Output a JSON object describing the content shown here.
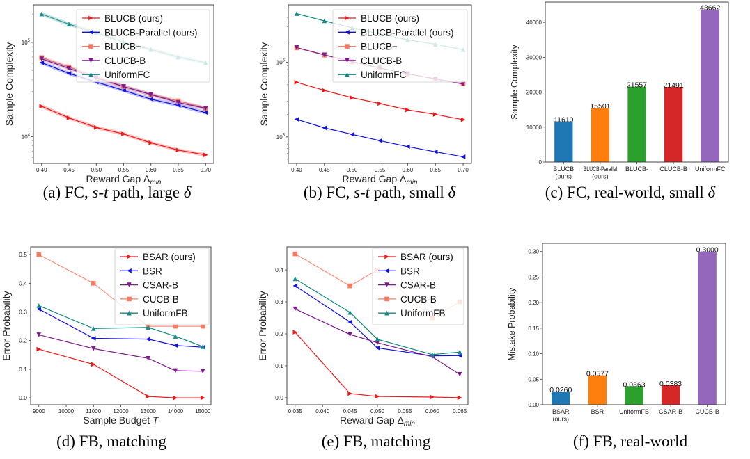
{
  "colors": {
    "red": "#f01818",
    "blue": "#1010e0",
    "salmon": "#fa7b62",
    "purple": "#7d1a8c",
    "teal": "#138a85",
    "bars": [
      "#1f77b4",
      "#ff7f0e",
      "#2ca02c",
      "#d62728",
      "#9467bd"
    ]
  },
  "chart_data": [
    {
      "id": "a",
      "type": "line",
      "yscale": "log",
      "xlabel": "Reward Gap Δ",
      "xlabel_sub": "min",
      "ylabel": "Sample Complexity",
      "x": [
        0.4,
        0.45,
        0.5,
        0.55,
        0.6,
        0.65,
        0.7
      ],
      "xticks": [
        "0.40",
        "0.45",
        "0.50",
        "0.55",
        "0.60",
        "0.65",
        "0.70"
      ],
      "xlim": [
        0.385,
        0.715
      ],
      "ylim": [
        5200,
        250000
      ],
      "yticks": [
        {
          "v": 10000,
          "base": "10",
          "exp": "4"
        },
        {
          "v": 100000,
          "base": "10",
          "exp": "5"
        }
      ],
      "shaded": true,
      "legend": "top-right",
      "series": [
        {
          "name": "BLUCB (ours)",
          "color": "red",
          "marker": "tri-right",
          "values": [
            21000,
            15800,
            12500,
            10700,
            8600,
            7200,
            6400
          ]
        },
        {
          "name": "BLUCB-Parallel (ours)",
          "color": "blue",
          "marker": "tri-left",
          "values": [
            61000,
            47000,
            38000,
            31000,
            25000,
            21500,
            18000
          ]
        },
        {
          "name": "BLUCB−",
          "color": "salmon",
          "marker": "square",
          "values": [
            69000,
            55000,
            43000,
            34000,
            28000,
            24000,
            20000
          ]
        },
        {
          "name": "CLUCB-B",
          "color": "purple",
          "marker": "tri-down",
          "values": [
            67000,
            53000,
            42000,
            34000,
            28000,
            23000,
            20000
          ]
        },
        {
          "name": "UniformFC",
          "color": "teal",
          "marker": "tri-up",
          "values": [
            200000,
            156000,
            127000,
            100000,
            84000,
            70000,
            61000
          ]
        }
      ]
    },
    {
      "id": "b",
      "type": "line",
      "yscale": "log",
      "xlabel": "Reward Gap Δ",
      "xlabel_sub": "min",
      "ylabel": "Sample Complexity",
      "x": [
        0.4,
        0.45,
        0.5,
        0.55,
        0.6,
        0.65,
        0.7
      ],
      "xticks": [
        "0.40",
        "0.45",
        "0.50",
        "0.55",
        "0.60",
        "0.65",
        "0.70"
      ],
      "xlim": [
        0.385,
        0.715
      ],
      "ylim": [
        44000,
        5900000
      ],
      "yticks": [
        {
          "v": 100000,
          "base": "10",
          "exp": "5"
        },
        {
          "v": 1000000,
          "base": "10",
          "exp": "6"
        }
      ],
      "shaded": false,
      "legend": "top-right",
      "series": [
        {
          "name": "BLUCB (ours)",
          "color": "red",
          "marker": "tri-right",
          "values": [
            540000,
            420000,
            335000,
            280000,
            230000,
            200000,
            170000
          ]
        },
        {
          "name": "BLUCB-Parallel (ours)",
          "color": "blue",
          "marker": "tri-left",
          "values": [
            172000,
            132000,
            108000,
            89000,
            74000,
            63000,
            54000
          ]
        },
        {
          "name": "BLUCB−",
          "color": "salmon",
          "marker": "square",
          "values": [
            1560000,
            1250000,
            1010000,
            840000,
            700000,
            600000,
            520000
          ]
        },
        {
          "name": "CLUCB-B",
          "color": "purple",
          "marker": "tri-down",
          "values": [
            1580000,
            1260000,
            1020000,
            840000,
            700000,
            600000,
            510000
          ]
        },
        {
          "name": "UniformFC",
          "color": "teal",
          "marker": "tri-up",
          "values": [
            4500000,
            3600000,
            2900000,
            2400000,
            2000000,
            1750000,
            1480000
          ]
        }
      ]
    },
    {
      "id": "c",
      "type": "bar",
      "ylabel": "Sample Complexity",
      "ylim": [
        0,
        45800
      ],
      "yticks": [
        0,
        10000,
        20000,
        30000,
        40000
      ],
      "categories": [
        [
          "BLUCB",
          "(ours)"
        ],
        [
          "BLUCB-Parallel",
          "(ours)"
        ],
        [
          "BLUCB-"
        ],
        [
          "CLUCB-B"
        ],
        [
          "UniformFC"
        ]
      ],
      "values": [
        11619,
        15501,
        21557,
        21491,
        43662
      ],
      "labels": [
        "11619",
        "15501",
        "21557",
        "21491",
        "43662"
      ]
    },
    {
      "id": "d",
      "type": "line",
      "yscale": "linear",
      "xlabel": "Sample Budget ",
      "xlabel_it": "T",
      "ylabel": "Error Probability",
      "x": [
        9000,
        11000,
        13000,
        14000,
        15000
      ],
      "xticks": [
        "9000",
        "10000",
        "11000",
        "12000",
        "13000",
        "14000",
        "15000"
      ],
      "xtickv": [
        9000,
        10000,
        11000,
        12000,
        13000,
        14000,
        15000
      ],
      "xlim": [
        8700,
        15300
      ],
      "ylim": [
        -0.024,
        0.527
      ],
      "yticks": [
        "0.0",
        "0.1",
        "0.2",
        "0.3",
        "0.4",
        "0.5"
      ],
      "legend": "top-right",
      "series": [
        {
          "name": "BSAR (ours)",
          "color": "red",
          "marker": "tri-right",
          "values": [
            0.17,
            0.117,
            0.005,
            0.0,
            0.0
          ]
        },
        {
          "name": "BSR",
          "color": "blue",
          "marker": "tri-left",
          "values": [
            0.31,
            0.208,
            0.205,
            0.183,
            0.177
          ]
        },
        {
          "name": "CSAR-B",
          "color": "purple",
          "marker": "tri-down",
          "values": [
            0.22,
            0.172,
            0.138,
            0.095,
            0.093
          ]
        },
        {
          "name": "CUCB-B",
          "color": "salmon",
          "marker": "square",
          "values": [
            0.5,
            0.4,
            0.25,
            0.25,
            0.25
          ]
        },
        {
          "name": "UniformFB",
          "color": "teal",
          "marker": "tri-up",
          "values": [
            0.322,
            0.242,
            0.246,
            0.215,
            0.179
          ]
        }
      ]
    },
    {
      "id": "e",
      "type": "line",
      "yscale": "linear",
      "xlabel": "Reward Gap Δ",
      "xlabel_sub": "min",
      "ylabel": "Error Probability",
      "x": [
        0.035,
        0.045,
        0.05,
        0.06,
        0.065
      ],
      "xticks": [
        "0.035",
        "0.040",
        "0.045",
        "0.050",
        "0.055",
        "0.060",
        "0.065"
      ],
      "xtickv": [
        0.035,
        0.04,
        0.045,
        0.05,
        0.055,
        0.06,
        0.065
      ],
      "xlim": [
        0.0335,
        0.0665
      ],
      "ylim": [
        -0.022,
        0.472
      ],
      "yticks": [
        "0.0",
        "0.1",
        "0.2",
        "0.3",
        "0.4"
      ],
      "legend": "top-right",
      "series": [
        {
          "name": "BSAR (ours)",
          "color": "red",
          "marker": "tri-right",
          "values": [
            0.205,
            0.013,
            0.004,
            0.002,
            0.0
          ]
        },
        {
          "name": "BSR",
          "color": "blue",
          "marker": "tri-left",
          "values": [
            0.35,
            0.237,
            0.156,
            0.131,
            0.132
          ]
        },
        {
          "name": "CSAR-B",
          "color": "purple",
          "marker": "tri-down",
          "values": [
            0.278,
            0.198,
            0.172,
            0.128,
            0.073
          ]
        },
        {
          "name": "CUCB-B",
          "color": "salmon",
          "marker": "square",
          "values": [
            0.45,
            0.35,
            0.4,
            0.25,
            0.3
          ]
        },
        {
          "name": "UniformFB",
          "color": "teal",
          "marker": "tri-up",
          "values": [
            0.372,
            0.267,
            0.183,
            0.135,
            0.143
          ]
        }
      ]
    },
    {
      "id": "f",
      "type": "bar",
      "ylabel": "Mistake Probability",
      "ylim": [
        0,
        0.316
      ],
      "yticks": [
        "0.00",
        "0.05",
        "0.10",
        "0.15",
        "0.20",
        "0.25",
        "0.30"
      ],
      "categories": [
        [
          "BSAR",
          "(ours)"
        ],
        [
          "BSR"
        ],
        [
          "UniformFB"
        ],
        [
          "CSAR-B"
        ],
        [
          "CUCB-B"
        ]
      ],
      "values": [
        0.026,
        0.0577,
        0.0363,
        0.0383,
        0.3
      ],
      "labels": [
        "0.0260",
        "0.0577",
        "0.0363",
        "0.0383",
        "0.3000"
      ]
    }
  ],
  "captions": [
    [
      {
        "t": "(a) FC, "
      },
      {
        "t": "s",
        "i": 1
      },
      {
        "t": "-"
      },
      {
        "t": "t",
        "i": 1
      },
      {
        "t": " path, large "
      },
      {
        "t": "δ",
        "i": 1
      }
    ],
    [
      {
        "t": "(b) FC, "
      },
      {
        "t": "s",
        "i": 1
      },
      {
        "t": "-"
      },
      {
        "t": "t",
        "i": 1
      },
      {
        "t": " path, small "
      },
      {
        "t": "δ",
        "i": 1
      }
    ],
    [
      {
        "t": "(c) FC, real-world, small "
      },
      {
        "t": "δ",
        "i": 1
      }
    ],
    [
      {
        "t": "(d) FB, matching"
      }
    ],
    [
      {
        "t": "(e) FB, matching"
      }
    ],
    [
      {
        "t": "(f) FB, real-world"
      }
    ]
  ]
}
